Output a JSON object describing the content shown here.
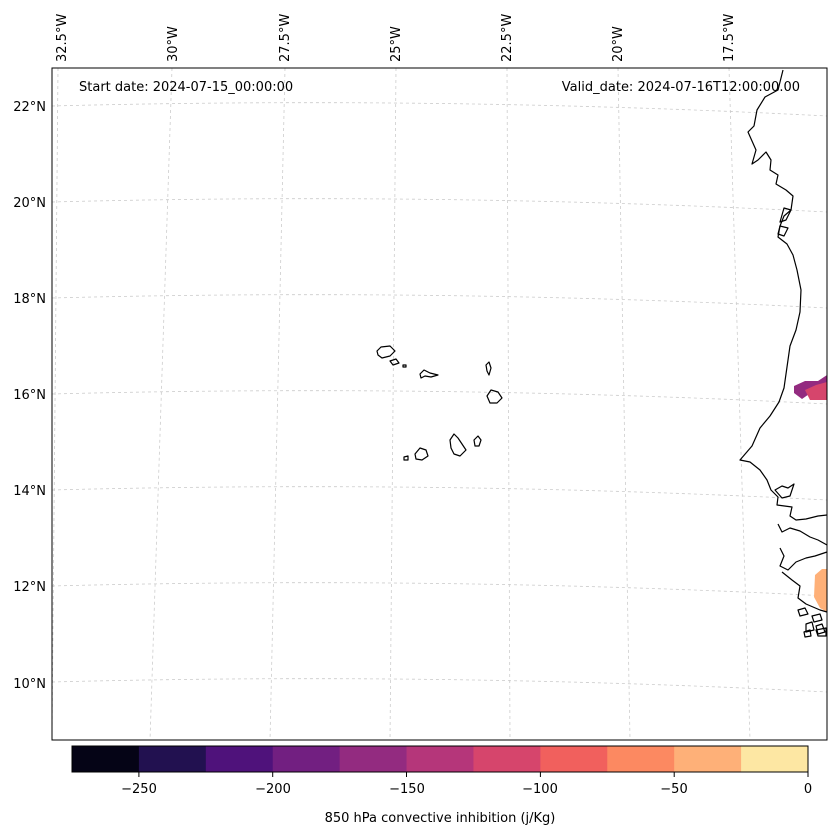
{
  "header": {
    "start_date": "Start date: 2024-07-15_00:00:00",
    "valid_date": "Valid_date: 2024-07-16T12:00:00.00"
  },
  "lon_labels": [
    "32.5°W",
    "30°W",
    "27.5°W",
    "25°W",
    "22.5°W",
    "20°W",
    "17.5°W"
  ],
  "lat_labels": [
    "22°N",
    "20°N",
    "18°N",
    "16°N",
    "14°N",
    "12°N",
    "10°N"
  ],
  "colorbar": {
    "label": "850 hPa convective inhibition (j/Kg)",
    "tick_labels": [
      "−250",
      "−200",
      "−150",
      "−100",
      "−50",
      "0"
    ],
    "colors": [
      "#050416",
      "#221150",
      "#4f127b",
      "#721f81",
      "#932b80",
      "#b5367a",
      "#d6456c",
      "#f1605d",
      "#fc8961",
      "#feb078",
      "#fde7a3"
    ]
  },
  "colors": {
    "coastline": "#000000",
    "grid": "#cccccc",
    "cin_patch_north_1": "#932b80",
    "cin_patch_north_2": "#d6456c",
    "cin_patch_south": "#feb078"
  }
}
